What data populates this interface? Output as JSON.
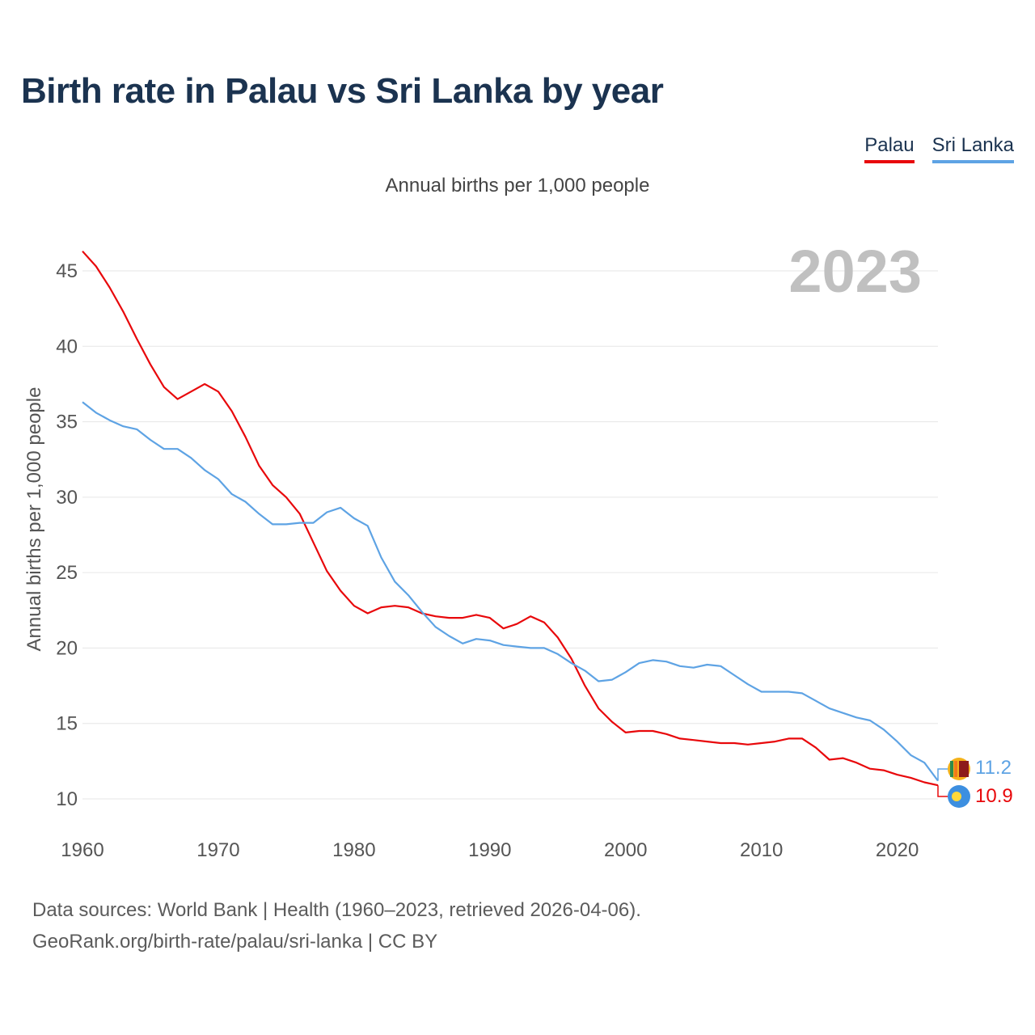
{
  "title": "Birth rate in Palau vs Sri Lanka by year",
  "subtitle": "Annual births per 1,000 people",
  "legend": [
    {
      "name": "Palau",
      "color": "#e8080b"
    },
    {
      "name": "Sri Lanka",
      "color": "#5ea3e4"
    }
  ],
  "year_label": "2023",
  "footer": {
    "line1": "Data sources: World Bank | Health (1960–2023, retrieved 2026-04-06).",
    "line2": "GeoRank.org/birth-rate/palau/sri-lanka | CC BY"
  },
  "chart_data": {
    "type": "line",
    "title": "Birth rate in Palau vs Sri Lanka by year",
    "ylabel": "Annual births per 1,000 people",
    "xlabel": "",
    "xlim": [
      1960,
      2023
    ],
    "ylim": [
      10,
      47
    ],
    "xticks": [
      1960,
      1970,
      1980,
      1990,
      2000,
      2010,
      2020
    ],
    "yticks": [
      10,
      15,
      20,
      25,
      30,
      35,
      40,
      45
    ],
    "grid": true,
    "legend_position": "top-right",
    "x": [
      1960,
      1961,
      1962,
      1963,
      1964,
      1965,
      1966,
      1967,
      1968,
      1969,
      1970,
      1971,
      1972,
      1973,
      1974,
      1975,
      1976,
      1977,
      1978,
      1979,
      1980,
      1981,
      1982,
      1983,
      1984,
      1985,
      1986,
      1987,
      1988,
      1989,
      1990,
      1991,
      1992,
      1993,
      1994,
      1995,
      1996,
      1997,
      1998,
      1999,
      2000,
      2001,
      2002,
      2003,
      2004,
      2005,
      2006,
      2007,
      2008,
      2009,
      2010,
      2011,
      2012,
      2013,
      2014,
      2015,
      2016,
      2017,
      2018,
      2019,
      2020,
      2021,
      2022,
      2023
    ],
    "series": [
      {
        "name": "Palau",
        "color": "#e8080b",
        "end_label": "10.9",
        "values": [
          46.3,
          45.3,
          43.9,
          42.3,
          40.5,
          38.8,
          37.3,
          36.5,
          37.0,
          37.5,
          37.0,
          35.7,
          34.0,
          32.1,
          30.8,
          30.0,
          28.9,
          27.0,
          25.1,
          23.8,
          22.8,
          22.3,
          22.7,
          22.8,
          22.7,
          22.3,
          22.1,
          22.0,
          22.0,
          22.2,
          22.0,
          21.3,
          21.6,
          22.1,
          21.7,
          20.7,
          19.3,
          17.5,
          16.0,
          15.1,
          14.4,
          14.5,
          14.5,
          14.3,
          14.0,
          13.9,
          13.8,
          13.7,
          13.7,
          13.6,
          13.7,
          13.8,
          14.0,
          14.0,
          13.4,
          12.6,
          12.7,
          12.4,
          12.0,
          11.9,
          11.6,
          11.4,
          11.1,
          10.9
        ]
      },
      {
        "name": "Sri Lanka",
        "color": "#5ea3e4",
        "end_label": "11.2",
        "values": [
          36.3,
          35.6,
          35.1,
          34.7,
          34.5,
          33.8,
          33.2,
          33.2,
          32.6,
          31.8,
          31.2,
          30.2,
          29.7,
          28.9,
          28.2,
          28.2,
          28.3,
          28.3,
          29.0,
          29.3,
          28.6,
          28.1,
          26.0,
          24.4,
          23.5,
          22.4,
          21.4,
          20.8,
          20.3,
          20.6,
          20.5,
          20.2,
          20.1,
          20.0,
          20.0,
          19.6,
          19.0,
          18.5,
          17.8,
          17.9,
          18.4,
          19.0,
          19.2,
          19.1,
          18.8,
          18.7,
          18.9,
          18.8,
          18.2,
          17.6,
          17.1,
          17.1,
          17.1,
          17.0,
          16.5,
          16.0,
          15.7,
          15.4,
          15.2,
          14.6,
          13.8,
          12.9,
          12.4,
          11.2
        ]
      }
    ]
  }
}
